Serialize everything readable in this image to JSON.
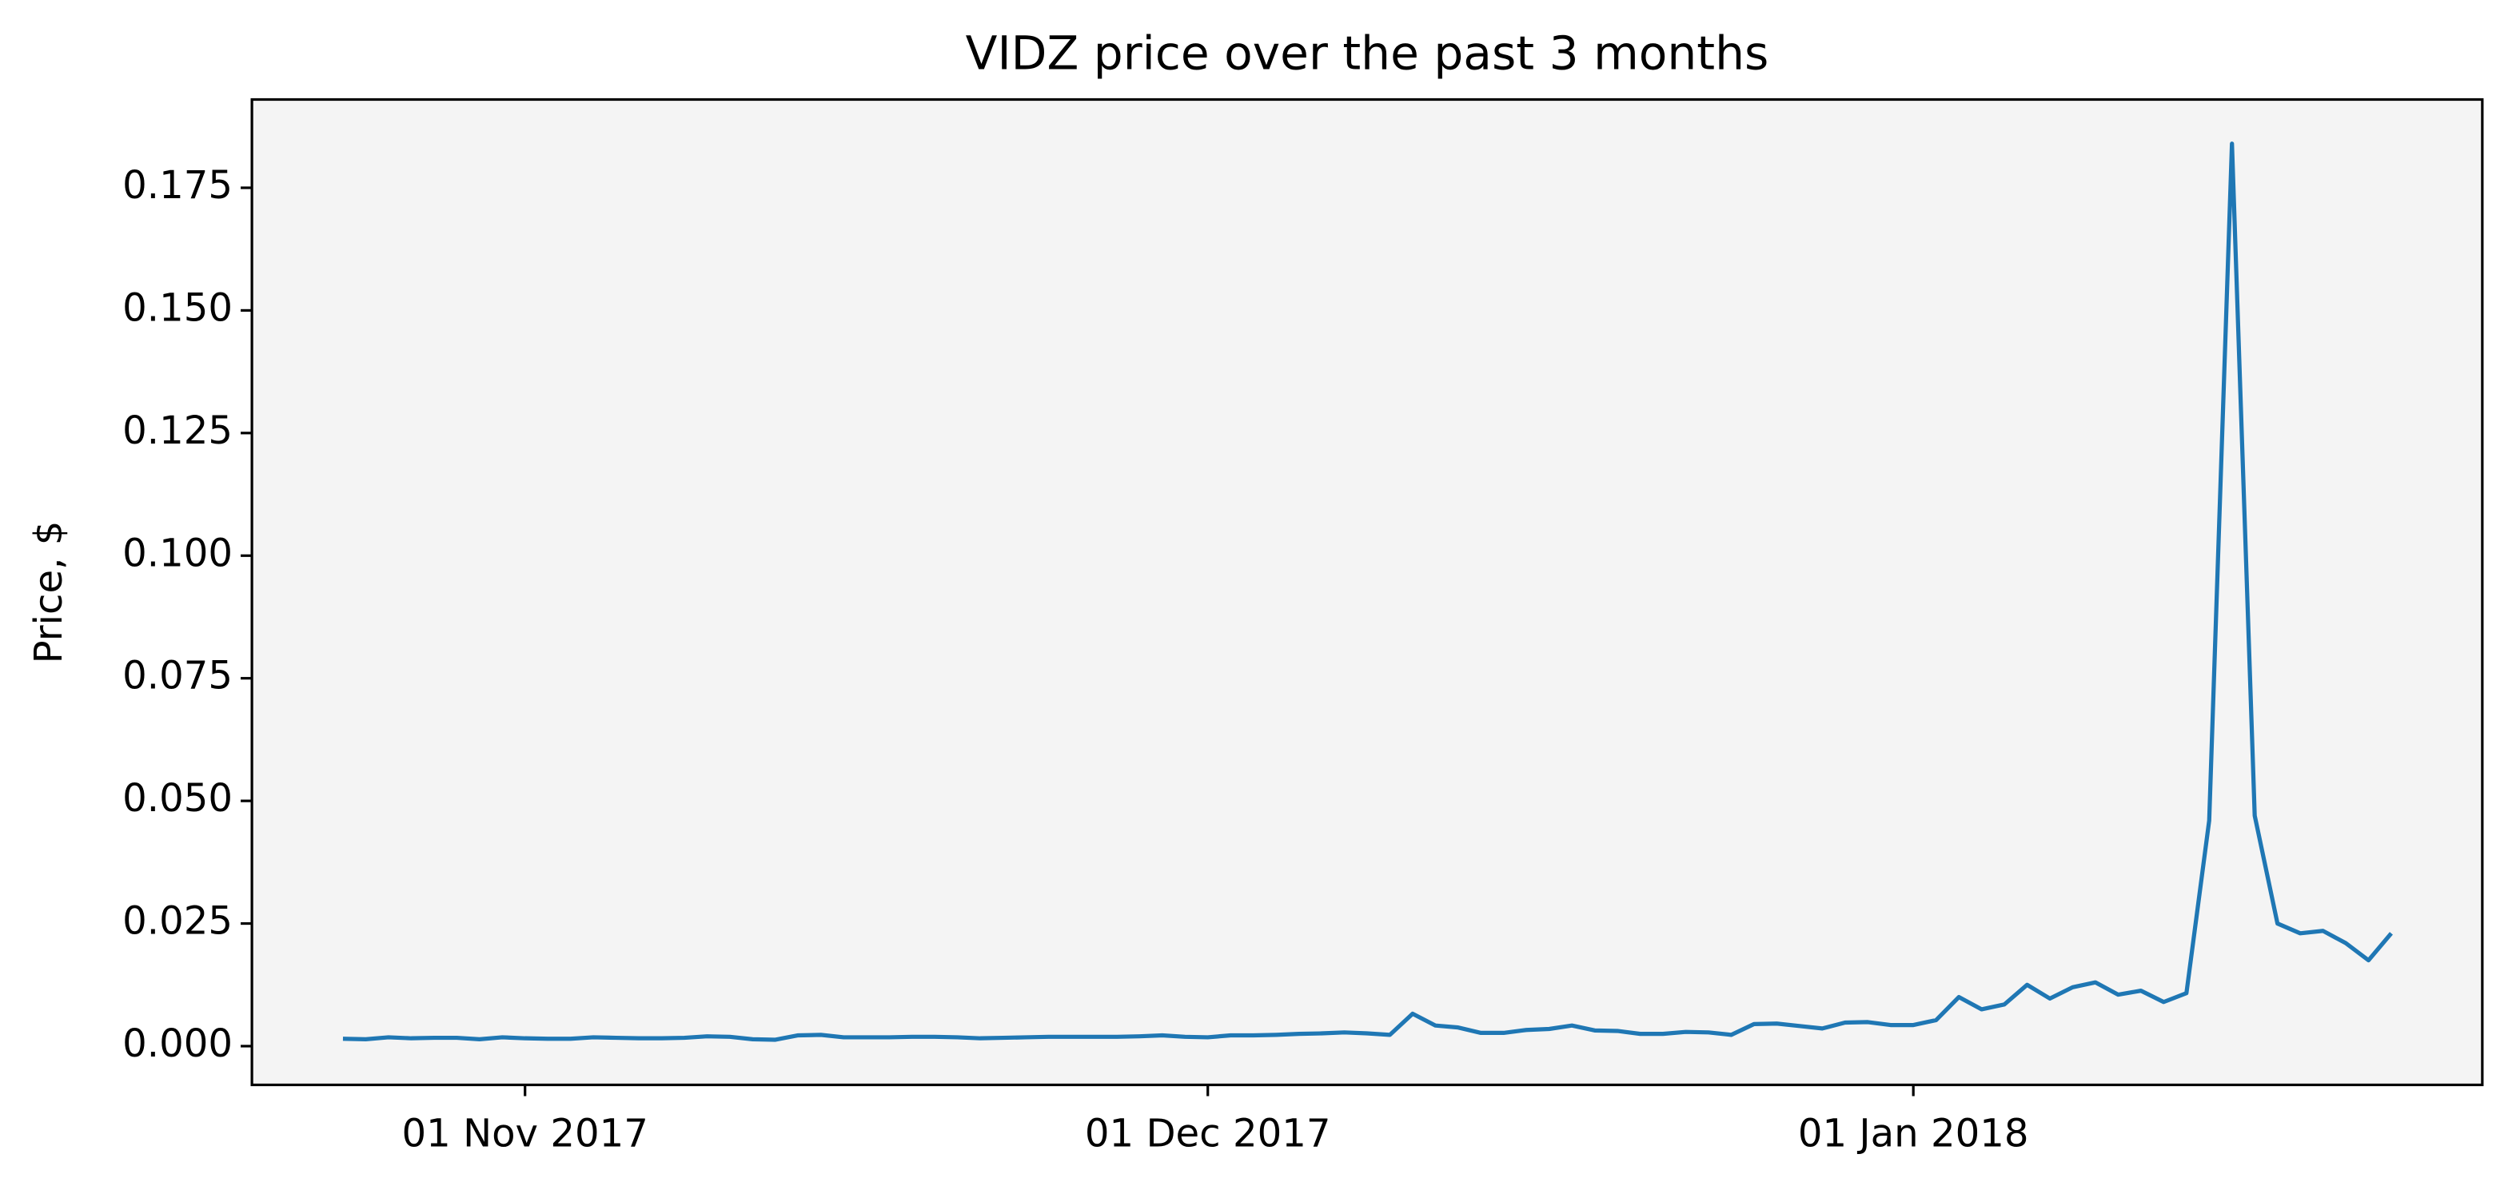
{
  "chart_data": {
    "type": "line",
    "title": "VIDZ price over the past 3 months",
    "y_label": "Price, $",
    "x": [
      "2017-10-24",
      "2017-10-25",
      "2017-10-26",
      "2017-10-27",
      "2017-10-28",
      "2017-10-29",
      "2017-10-30",
      "2017-10-31",
      "2017-11-01",
      "2017-11-02",
      "2017-11-03",
      "2017-11-04",
      "2017-11-05",
      "2017-11-06",
      "2017-11-07",
      "2017-11-08",
      "2017-11-09",
      "2017-11-10",
      "2017-11-11",
      "2017-11-12",
      "2017-11-13",
      "2017-11-14",
      "2017-11-15",
      "2017-11-16",
      "2017-11-17",
      "2017-11-18",
      "2017-11-19",
      "2017-11-20",
      "2017-11-21",
      "2017-11-22",
      "2017-11-23",
      "2017-11-24",
      "2017-11-25",
      "2017-11-26",
      "2017-11-27",
      "2017-11-28",
      "2017-11-29",
      "2017-11-30",
      "2017-12-01",
      "2017-12-02",
      "2017-12-03",
      "2017-12-04",
      "2017-12-05",
      "2017-12-06",
      "2017-12-07",
      "2017-12-08",
      "2017-12-09",
      "2017-12-10",
      "2017-12-11",
      "2017-12-12",
      "2017-12-13",
      "2017-12-14",
      "2017-12-15",
      "2017-12-16",
      "2017-12-17",
      "2017-12-18",
      "2017-12-19",
      "2017-12-20",
      "2017-12-21",
      "2017-12-22",
      "2017-12-23",
      "2017-12-24",
      "2017-12-25",
      "2017-12-26",
      "2017-12-27",
      "2017-12-28",
      "2017-12-29",
      "2017-12-30",
      "2017-12-31",
      "2018-01-01",
      "2018-01-02",
      "2018-01-03",
      "2018-01-04",
      "2018-01-05",
      "2018-01-06",
      "2018-01-07",
      "2018-01-08",
      "2018-01-09",
      "2018-01-10",
      "2018-01-11",
      "2018-01-12",
      "2018-01-13",
      "2018-01-14",
      "2018-01-15",
      "2018-01-16",
      "2018-01-17",
      "2018-01-18",
      "2018-01-19",
      "2018-01-20",
      "2018-01-21",
      "2018-01-22"
    ],
    "series": [
      {
        "name": "VIDZ",
        "color": "#1f77b4",
        "values": [
          0.0015,
          0.0014,
          0.0018,
          0.0016,
          0.0017,
          0.0017,
          0.0014,
          0.0018,
          0.0016,
          0.0015,
          0.0015,
          0.0018,
          0.0017,
          0.0016,
          0.0016,
          0.0017,
          0.002,
          0.0019,
          0.0014,
          0.0013,
          0.0022,
          0.0023,
          0.0018,
          0.0018,
          0.0018,
          0.0019,
          0.0019,
          0.0018,
          0.0016,
          0.0017,
          0.0018,
          0.0019,
          0.0019,
          0.0019,
          0.0019,
          0.002,
          0.0022,
          0.0019,
          0.0018,
          0.0022,
          0.0022,
          0.0023,
          0.0025,
          0.0026,
          0.0028,
          0.0026,
          0.0023,
          0.0066,
          0.0042,
          0.0038,
          0.0027,
          0.0027,
          0.0033,
          0.0035,
          0.0042,
          0.0032,
          0.0031,
          0.0025,
          0.0025,
          0.0029,
          0.0028,
          0.0023,
          0.0045,
          0.0046,
          0.0041,
          0.0036,
          0.0048,
          0.0049,
          0.0043,
          0.0043,
          0.0053,
          0.01,
          0.0075,
          0.0085,
          0.0125,
          0.0097,
          0.012,
          0.013,
          0.0105,
          0.0113,
          0.009,
          0.0108,
          0.046,
          0.184,
          0.047,
          0.025,
          0.023,
          0.0235,
          0.021,
          0.0175,
          0.023
        ]
      }
    ],
    "xlim": [
      "2017-10-20",
      "2018-01-26"
    ],
    "xticks": [
      {
        "value": "2017-11-01",
        "label": "01 Nov 2017"
      },
      {
        "value": "2017-12-01",
        "label": "01 Dec 2017"
      },
      {
        "value": "2018-01-01",
        "label": "01 Jan 2018"
      }
    ],
    "ylim": [
      -0.0079,
      0.193
    ],
    "yticks": [
      {
        "value": 0,
        "label": "0.000"
      },
      {
        "value": 0.025,
        "label": "0.025"
      },
      {
        "value": 0.05,
        "label": "0.050"
      },
      {
        "value": 0.075,
        "label": "0.075"
      },
      {
        "value": 0.1,
        "label": "0.100"
      },
      {
        "value": 0.125,
        "label": "0.125"
      },
      {
        "value": 0.15,
        "label": "0.150"
      },
      {
        "value": 0.175,
        "label": "0.175"
      }
    ],
    "background": "#f4f4f4",
    "grid": false
  }
}
